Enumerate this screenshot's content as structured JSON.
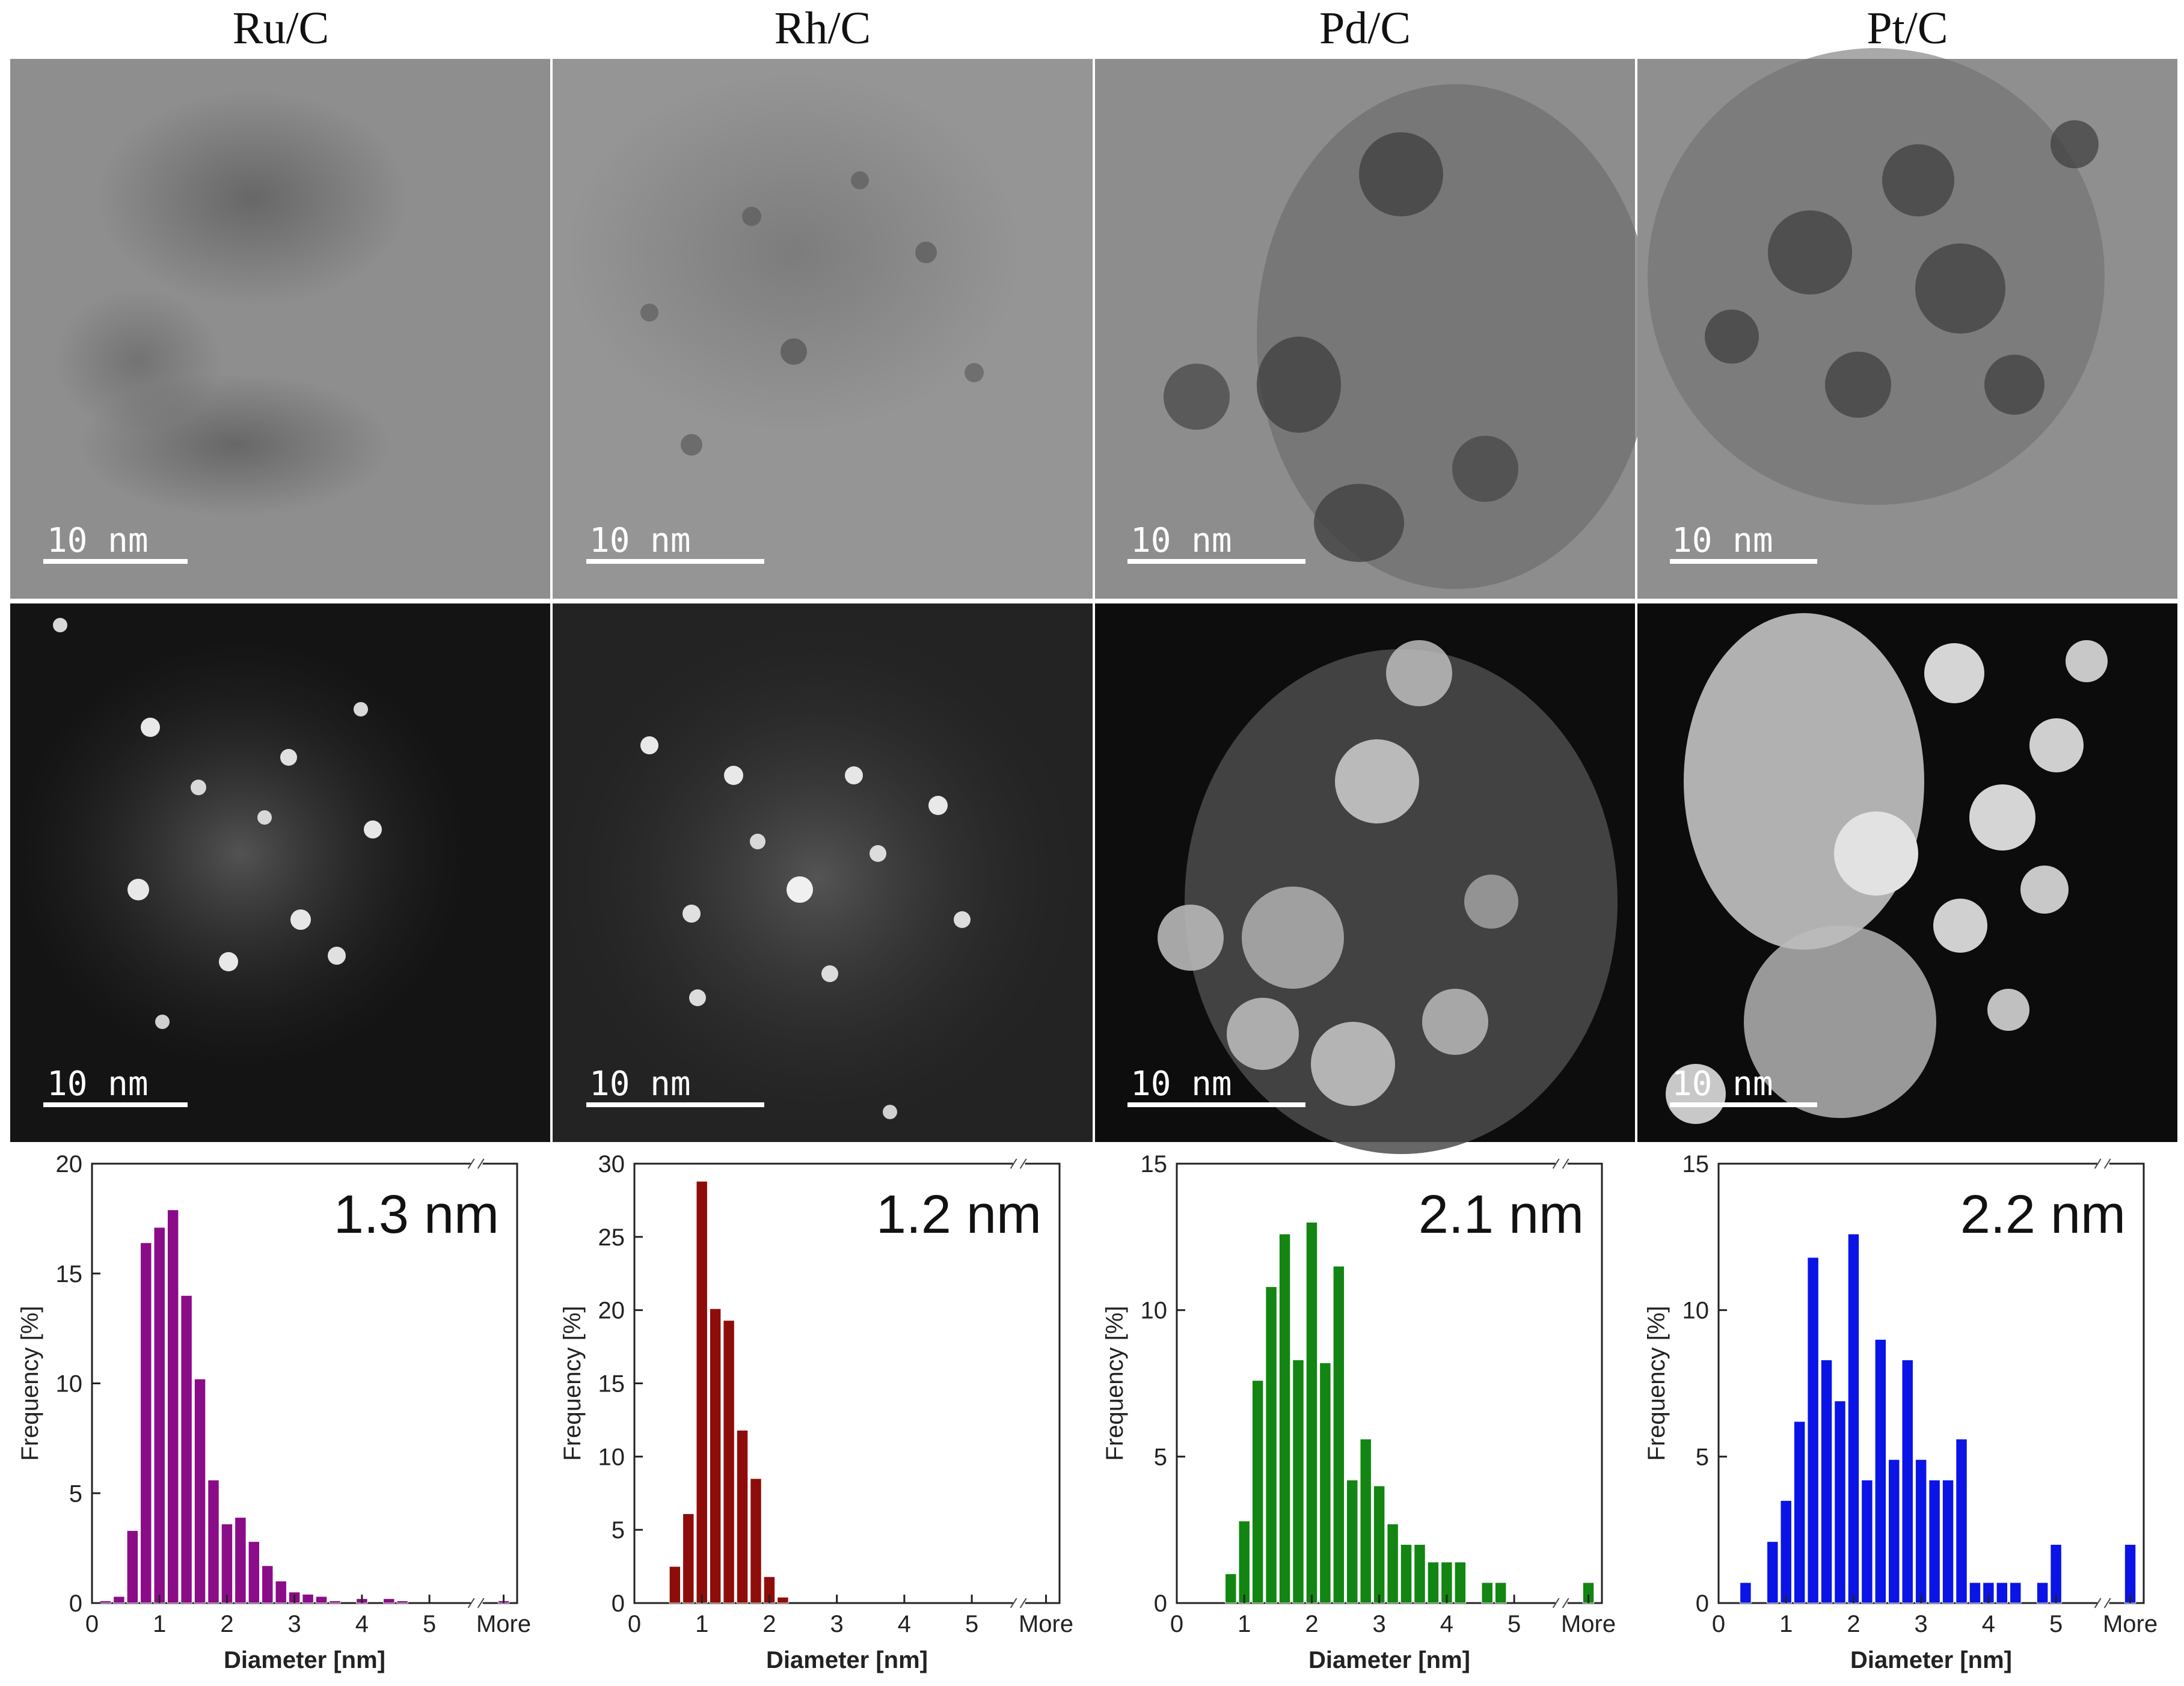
{
  "panels": [
    {
      "title": "Ru/C",
      "scale_bar_top": "10 nm",
      "scale_bar_bottom": "10 nm",
      "mean_label": "1.3 nm",
      "color": "#8b0c88"
    },
    {
      "title": "Rh/C",
      "scale_bar_top": "10 nm",
      "scale_bar_bottom": "10 nm",
      "mean_label": "1.2 nm",
      "color": "#8e0d0b"
    },
    {
      "title": "Pd/C",
      "scale_bar_top": "10 nm",
      "scale_bar_bottom": "10 nm",
      "mean_label": "2.1 nm",
      "color": "#128512"
    },
    {
      "title": "Pt/C",
      "scale_bar_top": "10 nm",
      "scale_bar_bottom": "10 nm",
      "mean_label": "2.2 nm",
      "color": "#0a14e6"
    }
  ],
  "chart_data": [
    {
      "type": "bar",
      "xlabel": "Diameter [nm]",
      "ylabel": "Frequency [%]",
      "ylim": [
        0,
        20
      ],
      "yticks": [
        0,
        5,
        10,
        15,
        20
      ],
      "xticks": [
        "0",
        "1",
        "2",
        "3",
        "4",
        "5",
        "More"
      ],
      "bin_width": 0.2,
      "annotation": "1.3 nm",
      "x": [
        0.2,
        0.4,
        0.6,
        0.8,
        1.0,
        1.2,
        1.4,
        1.6,
        1.8,
        2.0,
        2.2,
        2.4,
        2.6,
        2.8,
        3.0,
        3.2,
        3.4,
        3.6,
        3.8,
        4.0,
        4.2,
        4.4,
        4.6,
        4.8,
        5.0,
        "More"
      ],
      "values": [
        0.1,
        0.3,
        3.3,
        16.4,
        17.1,
        17.9,
        14.0,
        10.2,
        5.6,
        3.6,
        3.9,
        2.8,
        1.7,
        1.0,
        0.5,
        0.4,
        0.3,
        0.1,
        0,
        0.2,
        0,
        0.2,
        0.1,
        0,
        0,
        0.1
      ]
    },
    {
      "type": "bar",
      "xlabel": "Diameter [nm]",
      "ylabel": "Frequency [%]",
      "ylim": [
        0,
        30
      ],
      "yticks": [
        0,
        5,
        10,
        15,
        20,
        25,
        30
      ],
      "xticks": [
        "0",
        "1",
        "2",
        "3",
        "4",
        "5",
        "More"
      ],
      "bin_width": 0.2,
      "annotation": "1.2 nm",
      "x": [
        0.6,
        0.8,
        1.0,
        1.2,
        1.4,
        1.6,
        1.8,
        2.0,
        2.2
      ],
      "values": [
        2.5,
        6.1,
        28.8,
        20.1,
        19.3,
        11.8,
        8.5,
        1.8,
        0.4
      ]
    },
    {
      "type": "bar",
      "xlabel": "Diameter [nm]",
      "ylabel": "Frequency [%]",
      "ylim": [
        0,
        15
      ],
      "yticks": [
        0,
        5,
        10,
        15
      ],
      "xticks": [
        "0",
        "1",
        "2",
        "3",
        "4",
        "5",
        "More"
      ],
      "bin_width": 0.2,
      "annotation": "2.1 nm",
      "x": [
        0.8,
        1.0,
        1.2,
        1.4,
        1.6,
        1.8,
        2.0,
        2.2,
        2.4,
        2.6,
        2.8,
        3.0,
        3.2,
        3.4,
        3.6,
        3.8,
        4.0,
        4.2,
        4.4,
        4.6,
        4.8,
        "More"
      ],
      "values": [
        1.0,
        2.8,
        7.6,
        10.8,
        12.6,
        8.3,
        13.0,
        8.2,
        11.5,
        4.2,
        5.6,
        4.0,
        2.7,
        2.0,
        2.0,
        1.4,
        1.4,
        1.4,
        0,
        0.7,
        0.7,
        0.7
      ]
    },
    {
      "type": "bar",
      "xlabel": "Diameter [nm]",
      "ylabel": "Frequency [%]",
      "ylim": [
        0,
        15
      ],
      "yticks": [
        0,
        5,
        10,
        15
      ],
      "xticks": [
        "0",
        "1",
        "2",
        "3",
        "4",
        "5",
        "More"
      ],
      "bin_width": 0.2,
      "annotation": "2.2 nm",
      "x": [
        0.4,
        0.6,
        0.8,
        1.0,
        1.2,
        1.4,
        1.6,
        1.8,
        2.0,
        2.2,
        2.4,
        2.6,
        2.8,
        3.0,
        3.2,
        3.4,
        3.6,
        3.8,
        4.0,
        4.2,
        4.4,
        4.6,
        4.8,
        5.0,
        "More"
      ],
      "values": [
        0.7,
        0,
        2.1,
        3.5,
        6.2,
        11.8,
        8.3,
        6.9,
        12.6,
        4.2,
        9.0,
        4.9,
        8.3,
        4.9,
        4.2,
        4.2,
        5.6,
        0.7,
        0.7,
        0.7,
        0.7,
        0,
        0.7,
        2.0,
        2.0
      ]
    }
  ]
}
